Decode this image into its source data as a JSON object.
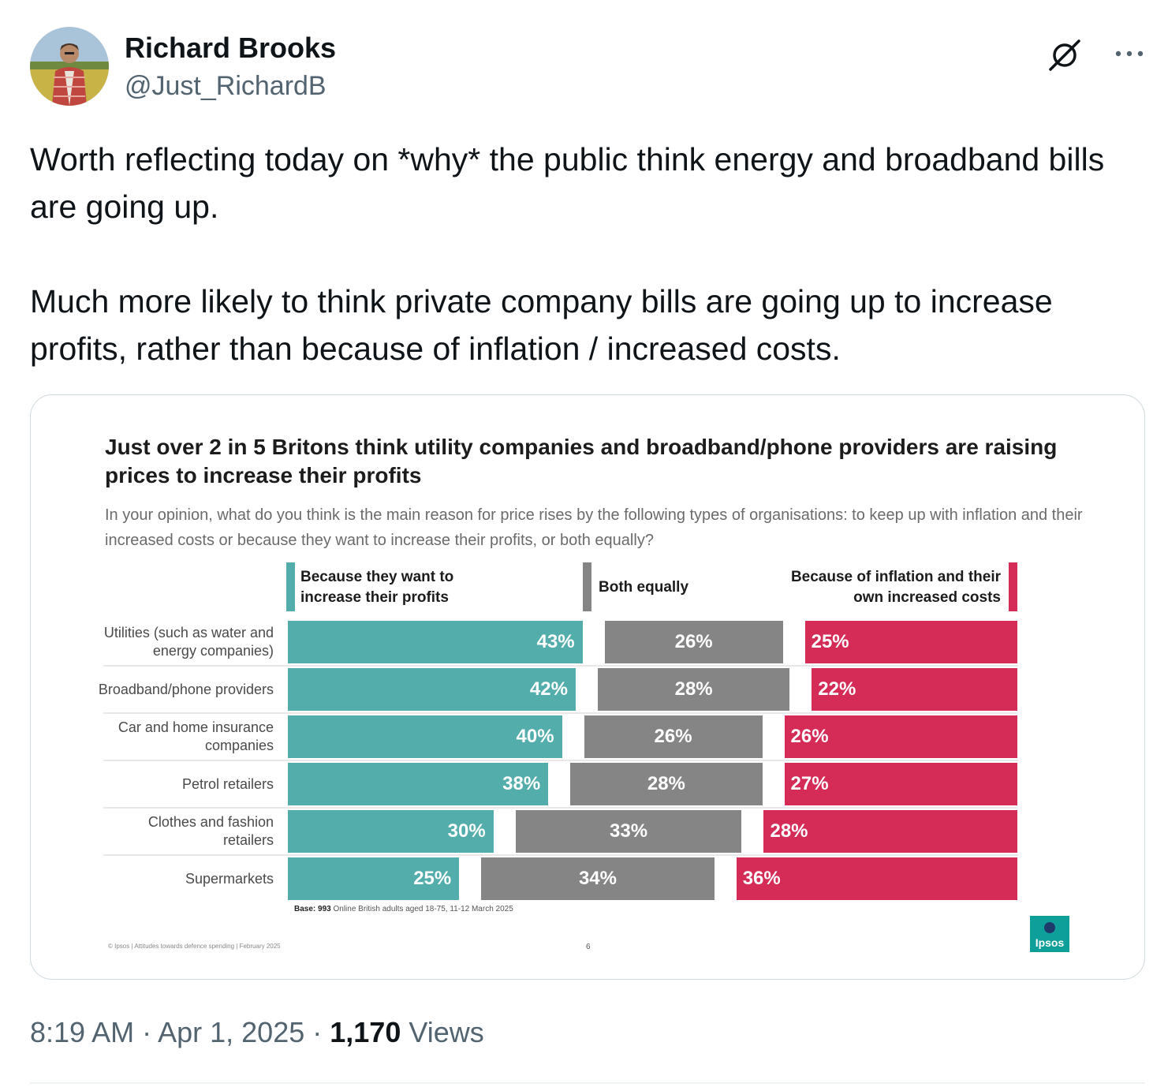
{
  "author": {
    "name": "Richard Brooks",
    "handle": "@Just_RichardB"
  },
  "tweet": {
    "paragraphs": [
      "Worth reflecting today on *why* the public think energy and broadband bills are going up.",
      "Much more likely to think private company bills are going up to increase profits, rather than because of inflation / increased costs."
    ]
  },
  "icons": {
    "grok": "grok-icon",
    "more": "more-icon",
    "ipsos_logo": "ipsos-logo"
  },
  "chart_data": {
    "type": "bar",
    "stacked": true,
    "orientation": "horizontal",
    "title": "Just over 2 in 5 Britons think utility companies and broadband/phone providers are raising prices to increase their profits",
    "subtitle": "In your opinion, what do you think is the main reason for price rises by the following types of organisations: to keep up with inflation and their increased costs or because they want to increase their profits, or both equally?",
    "categories": [
      "Utilities (such as water and energy companies)",
      "Broadband/phone providers",
      "Car and home insurance companies",
      "Petrol retailers",
      "Clothes and fashion retailers",
      "Supermarkets"
    ],
    "series": [
      {
        "name": "Because they want to increase their profits",
        "color": "#53adab",
        "values": [
          43,
          42,
          40,
          38,
          30,
          25
        ]
      },
      {
        "name": "Both equally",
        "color": "#858585",
        "values": [
          26,
          28,
          26,
          28,
          33,
          34
        ]
      },
      {
        "name": "Because of inflation and their own increased costs",
        "color": "#d42b57",
        "values": [
          25,
          22,
          26,
          27,
          28,
          36
        ]
      }
    ],
    "value_suffix": "%",
    "base_label": "Base:",
    "base_count": "993",
    "base_text": "Online British adults aged 18-75, 11-12 March 2025",
    "footer": "© Ipsos | Attitudes towards defence spending | February 2025",
    "page_number": "6",
    "logo_text": "Ipsos"
  },
  "meta": {
    "time": "8:19 AM",
    "date": "Apr 1, 2025",
    "views_count": "1,170",
    "views_label": "Views"
  }
}
